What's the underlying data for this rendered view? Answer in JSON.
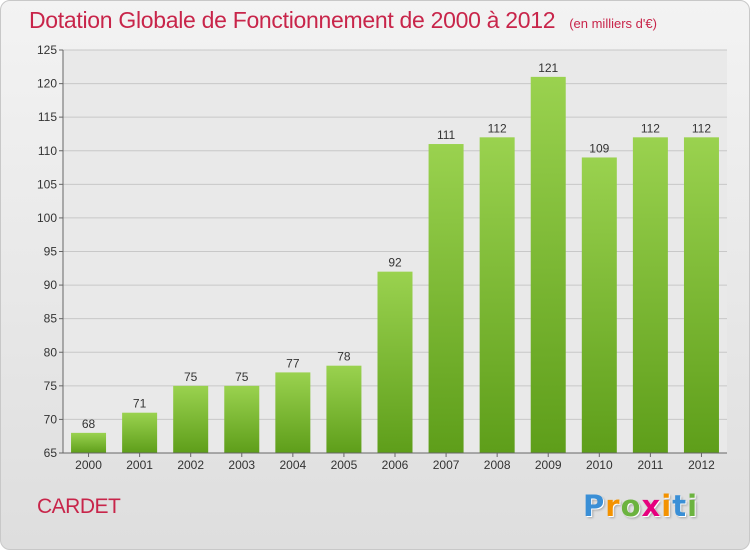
{
  "chart_data": {
    "type": "bar",
    "title": "Dotation Globale de Fonctionnement de 2000 à 2012",
    "subtitle": "(en milliers d'€)",
    "categories": [
      "2000",
      "2001",
      "2002",
      "2003",
      "2004",
      "2005",
      "2006",
      "2007",
      "2008",
      "2009",
      "2010",
      "2011",
      "2012"
    ],
    "values": [
      68,
      71,
      75,
      75,
      77,
      78,
      92,
      111,
      112,
      121,
      109,
      112,
      112
    ],
    "ylim": [
      65,
      125
    ],
    "yticks": [
      65,
      70,
      75,
      80,
      85,
      90,
      95,
      100,
      105,
      110,
      115,
      120,
      125
    ],
    "grid": "horizontal",
    "bar_color": "#8cc63f",
    "bar_color_dark": "#5e9e1a"
  },
  "commune": "CARDET",
  "logo": {
    "letters": [
      "P",
      "r",
      "o",
      "x",
      "i",
      "t",
      "i"
    ],
    "colors": [
      "#3a8fd6",
      "#f39200",
      "#6cb33f",
      "#e6007e",
      "#f39200",
      "#3a8fd6",
      "#6cb33f"
    ]
  }
}
